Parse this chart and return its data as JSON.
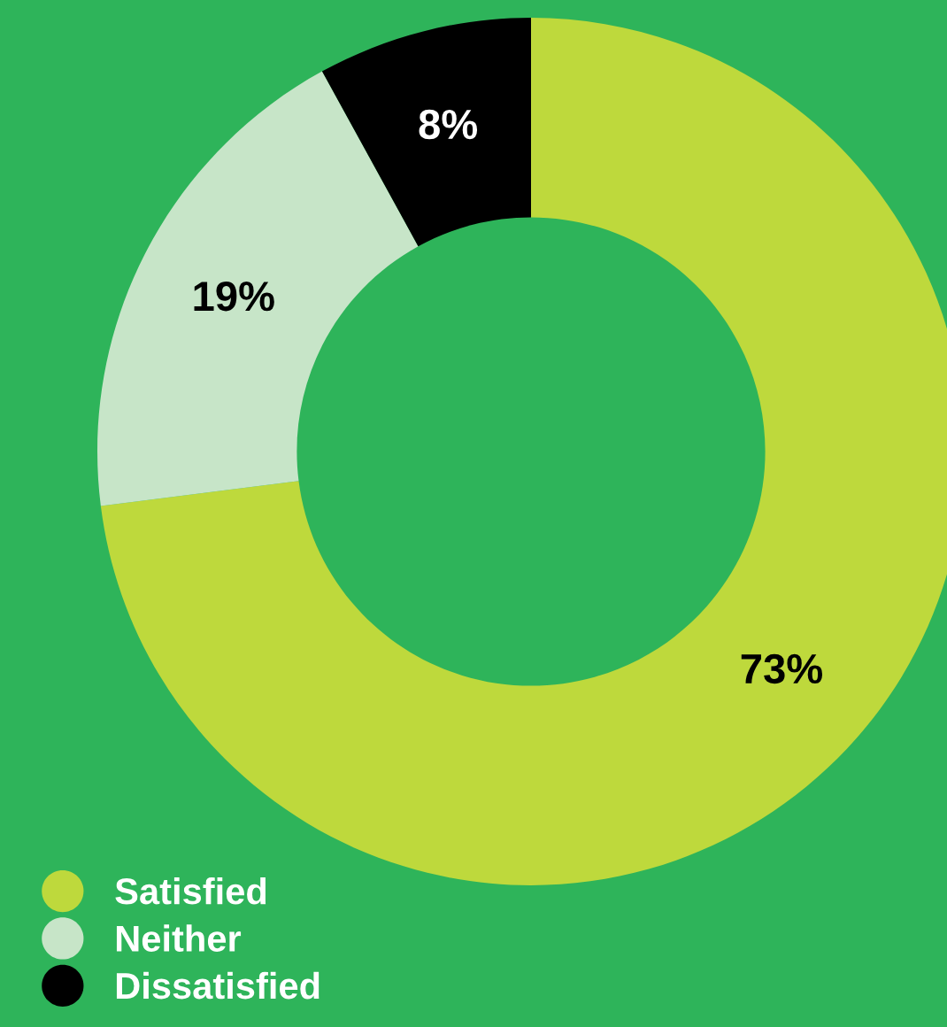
{
  "chart_data": {
    "type": "donut",
    "categories": [
      "Satisfied",
      "Neither",
      "Dissatisfied"
    ],
    "values": [
      73,
      19,
      8
    ],
    "colors": [
      "#bed93c",
      "#c7e5c8",
      "#000000"
    ],
    "value_labels": [
      "73%",
      "19%",
      "8%"
    ],
    "legend": "bottom left"
  }
}
